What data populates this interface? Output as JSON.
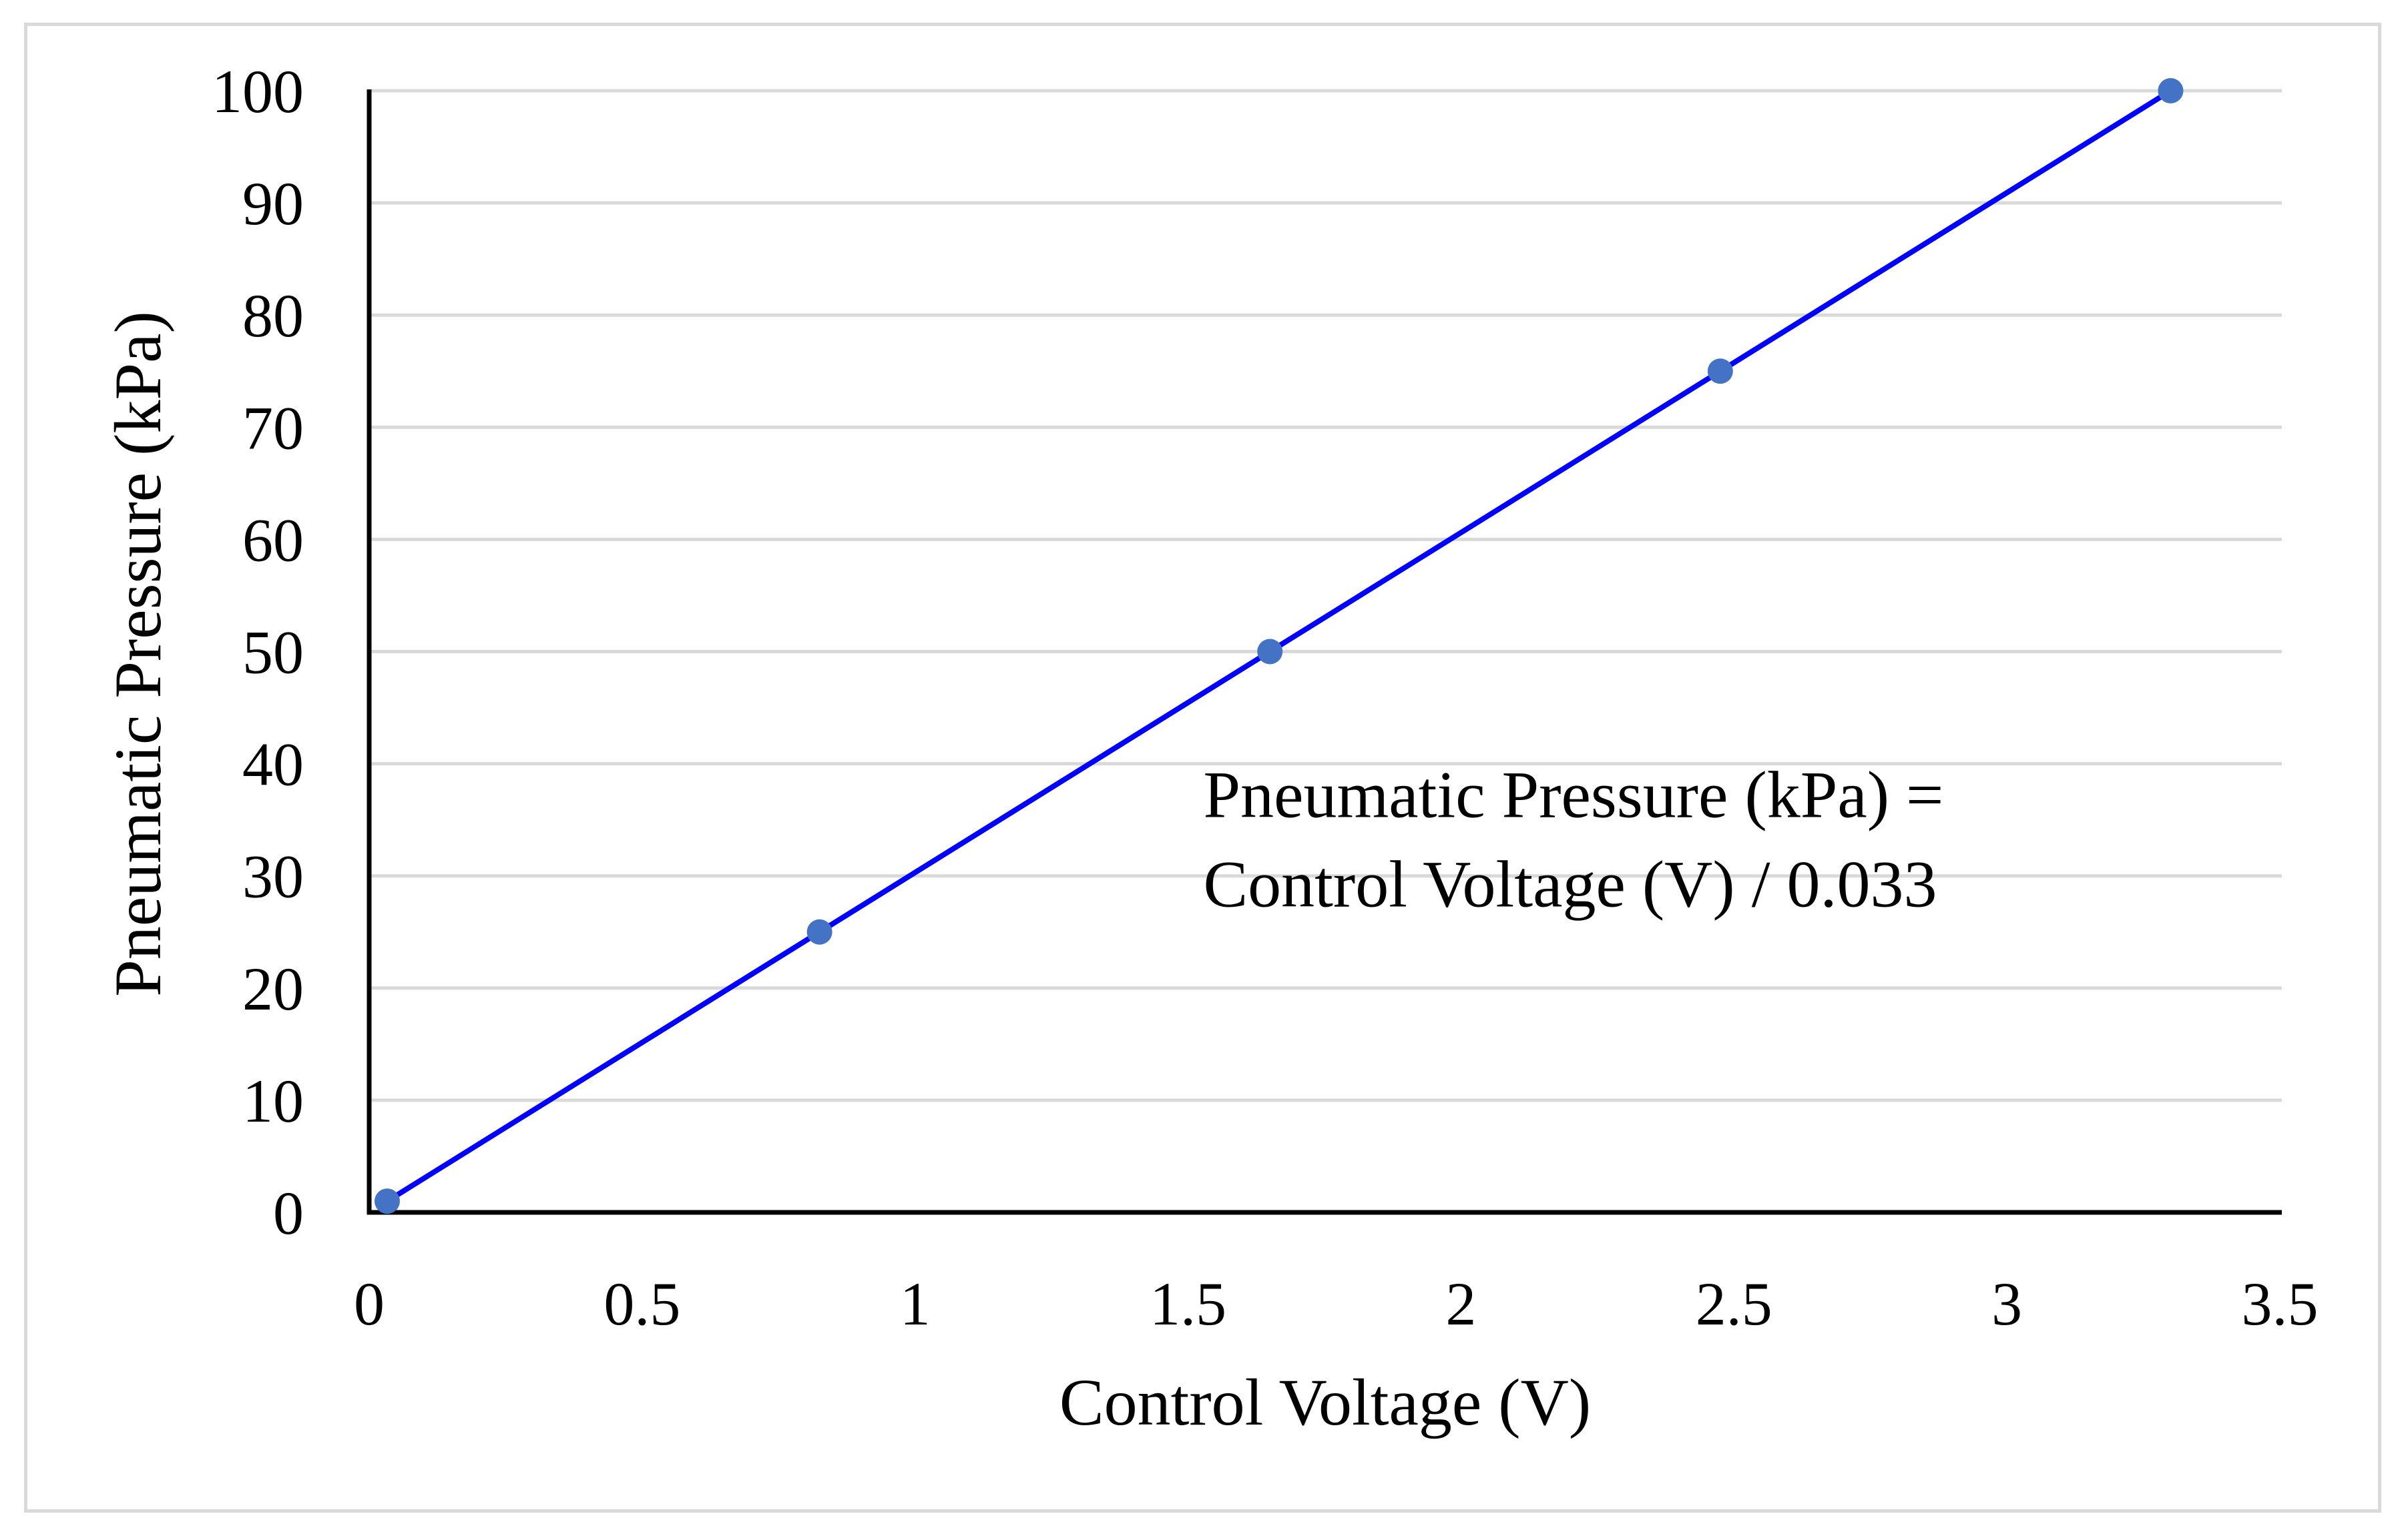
{
  "chart_data": {
    "type": "line",
    "title": "",
    "xlabel": "Control Voltage (V)",
    "ylabel": "Pneumatic Pressure (kPa)",
    "xlim": [
      0,
      3.5
    ],
    "ylim": [
      0,
      100
    ],
    "x_ticks": [
      0,
      0.5,
      1,
      1.5,
      2,
      2.5,
      3,
      3.5
    ],
    "x_tick_labels": [
      "0",
      "0.5",
      "1",
      "1.5",
      "2",
      "2.5",
      "3",
      "3.5"
    ],
    "y_ticks": [
      0,
      10,
      20,
      30,
      40,
      50,
      60,
      70,
      80,
      90,
      100
    ],
    "y_tick_labels": [
      "0",
      "10",
      "20",
      "30",
      "40",
      "50",
      "60",
      "70",
      "80",
      "90",
      "100"
    ],
    "grid": "horizontal",
    "series": [
      {
        "name": "Pneumatic Pressure",
        "x": [
          0.033,
          0.825,
          1.65,
          2.475,
          3.3
        ],
        "y": [
          1,
          25,
          50,
          75,
          100
        ],
        "line_color": "#0000ff",
        "marker_color": "#4472c4"
      }
    ],
    "annotation": {
      "line1": "Pneumatic Pressure (kPa) =",
      "line2": "Control Voltage (V) / 0.033",
      "anchor_x": 2.2,
      "anchor_y": 35
    },
    "gridline_color": "#d9d9d9",
    "axis_color": "#000000"
  }
}
